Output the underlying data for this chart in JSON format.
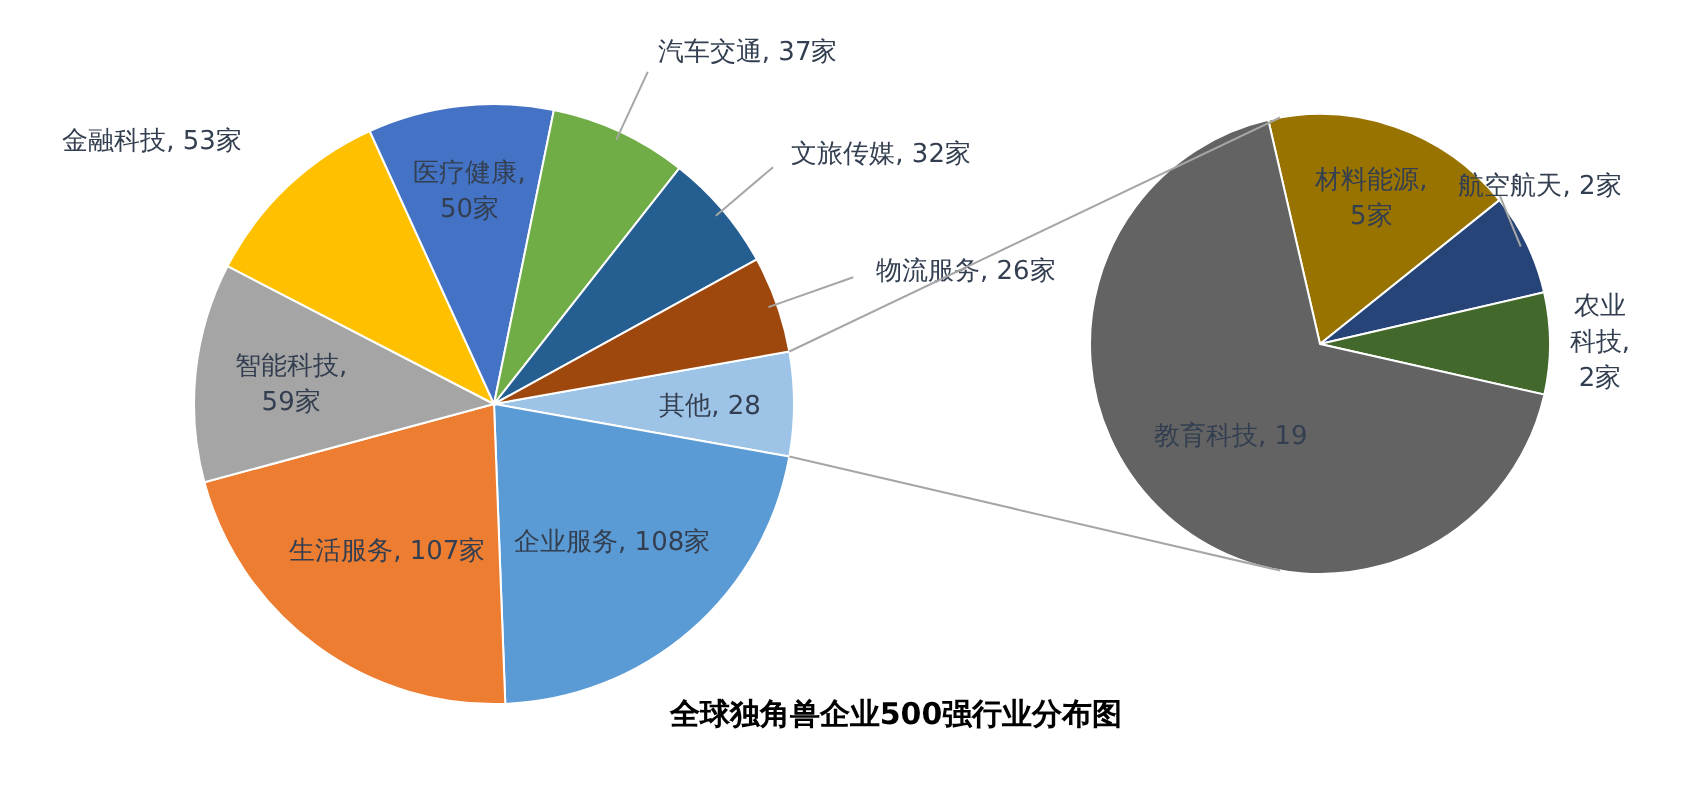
{
  "chart_data": [
    {
      "type": "pie",
      "title": "全球独角兽企业500强行业分布图",
      "categories": [
        "其他, 28",
        "企业服务, 108家",
        "生活服务, 107家",
        "智能科技, 59家",
        "金融科技, 53家",
        "医疗健康, 50家",
        "汽车交通, 37家",
        "文旅传媒, 32家",
        "物流服务, 26家"
      ],
      "values": [
        28,
        108,
        107,
        59,
        53,
        50,
        37,
        32,
        26
      ],
      "colors": [
        "#9dc3e6",
        "#5b9bd5",
        "#ed7d31",
        "#a5a5a5",
        "#ffc000",
        "#4472c4",
        "#70ad47",
        "#255e91",
        "#9e480e"
      ]
    },
    {
      "type": "pie",
      "categories": [
        "材料能源, 5家",
        "航空航天, 2家",
        "农业科技, 2家",
        "教育科技, 19"
      ],
      "values": [
        5,
        2,
        2,
        19
      ],
      "colors": [
        "#997300",
        "#264478",
        "#43682b",
        "#636363"
      ]
    }
  ]
}
